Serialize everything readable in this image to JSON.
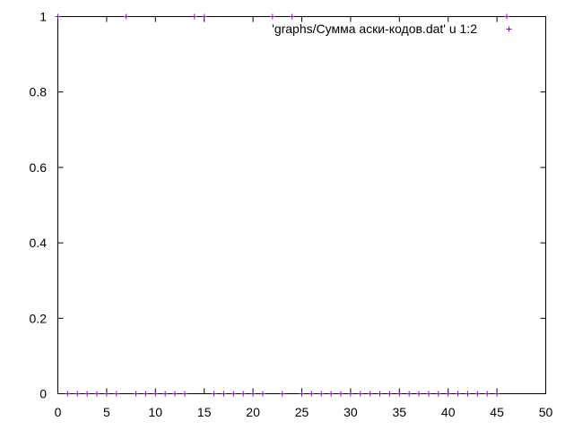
{
  "chart_data": {
    "type": "scatter",
    "title": "",
    "xlabel": "",
    "ylabel": "",
    "xlim": [
      0,
      50
    ],
    "ylim": [
      0,
      1
    ],
    "grid": false,
    "legend_position": "top-right",
    "xticks": [
      0,
      5,
      10,
      15,
      20,
      25,
      30,
      35,
      40,
      45,
      50
    ],
    "yticks": [
      0,
      0.2,
      0.4,
      0.6,
      0.8,
      1
    ],
    "xtick_labels": [
      "0",
      "5",
      "10",
      "15",
      "20",
      "25",
      "30",
      "35",
      "40",
      "45",
      "50"
    ],
    "ytick_labels": [
      "0",
      "0.2",
      "0.4",
      "0.6",
      "0.8",
      "1"
    ],
    "marker": "plus",
    "series": [
      {
        "name": "'graphs/Сумма аски-кодов.dat' u 1:2",
        "color": "#9400d3",
        "x": [
          0,
          1,
          2,
          3,
          4,
          5,
          6,
          7,
          8,
          9,
          10,
          11,
          12,
          13,
          14,
          15,
          16,
          17,
          18,
          19,
          20,
          21,
          22,
          23,
          24,
          25,
          26,
          27,
          28,
          29,
          30,
          31,
          32,
          33,
          34,
          35,
          36,
          37,
          38,
          39,
          40,
          41,
          42,
          43,
          44,
          45,
          46
        ],
        "y": [
          1,
          0,
          0,
          0,
          0,
          0,
          0,
          1,
          0,
          0,
          0,
          0,
          0,
          0,
          1,
          1,
          0,
          0,
          0,
          0,
          0,
          0,
          1,
          0,
          1,
          0,
          0,
          0,
          0,
          0,
          0,
          0,
          0,
          0,
          0,
          0,
          0,
          0,
          0,
          0,
          0,
          0,
          0,
          0,
          0,
          0,
          1
        ]
      }
    ]
  }
}
